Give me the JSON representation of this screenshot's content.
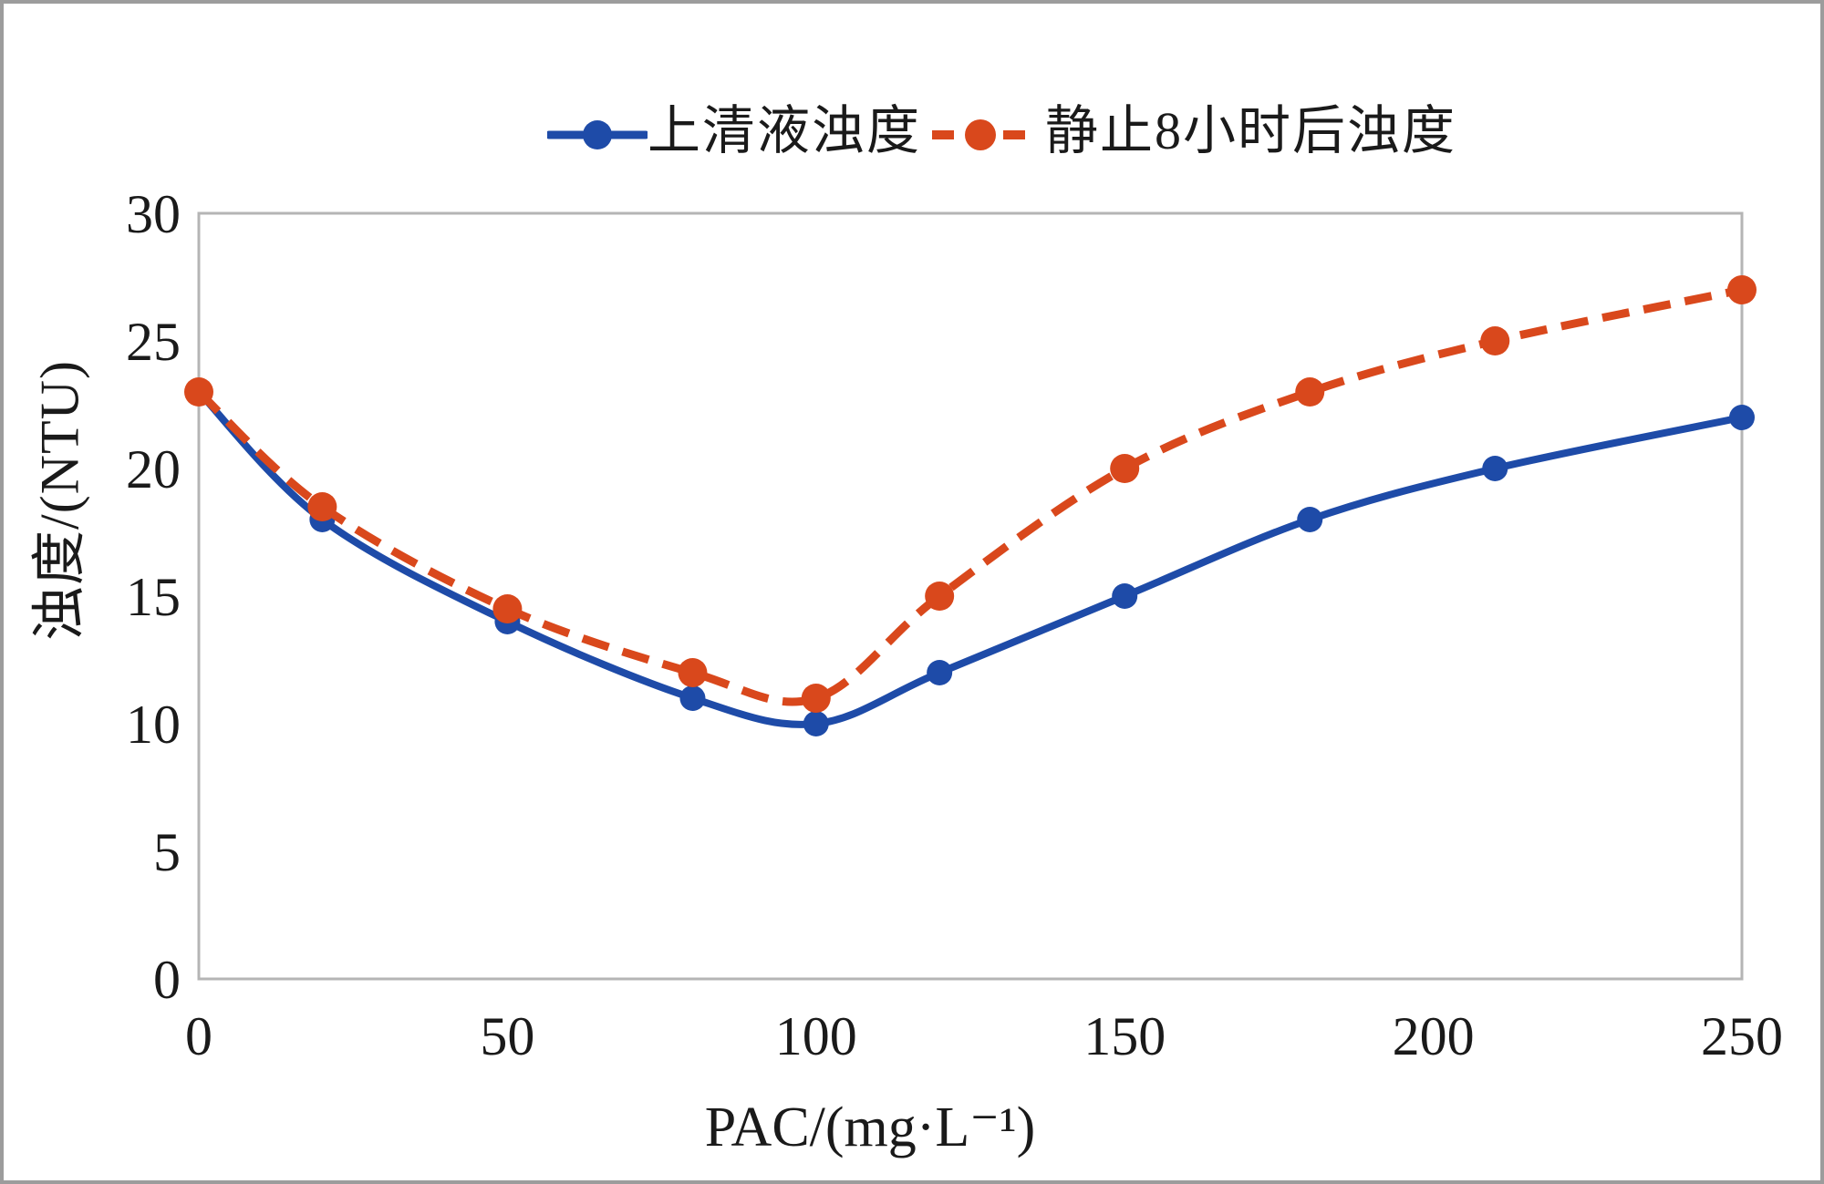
{
  "chart_data": {
    "type": "line",
    "x": [
      0,
      20,
      50,
      80,
      100,
      120,
      150,
      180,
      210,
      250
    ],
    "series": [
      {
        "name": "上清液浊度",
        "color": "#1e4ba8",
        "line_style": "solid",
        "marker": "circle",
        "values": [
          23,
          18,
          14,
          11,
          10,
          12,
          15,
          18,
          20,
          22
        ]
      },
      {
        "name": "静止8小时后浊度",
        "color": "#d9481c",
        "line_style": "dashed",
        "marker": "circle",
        "values": [
          23,
          18.5,
          14.5,
          12,
          11,
          15,
          20,
          23,
          25,
          27
        ]
      }
    ],
    "title": "",
    "xlabel": "PAC/(mg·L⁻¹)",
    "ylabel": "浊度/(NTU)",
    "xlim": [
      0,
      250
    ],
    "ylim": [
      0,
      30
    ],
    "x_ticks": [
      0,
      50,
      100,
      150,
      200,
      250
    ],
    "y_ticks": [
      0,
      5,
      10,
      15,
      20,
      25,
      30
    ],
    "grid": false,
    "legend_position": "top-center"
  },
  "colors": {
    "axis_frame": "#b5b5b5",
    "text": "#1a1a1a",
    "figure_border": "#9c9c9c",
    "background": "#ffffff"
  }
}
